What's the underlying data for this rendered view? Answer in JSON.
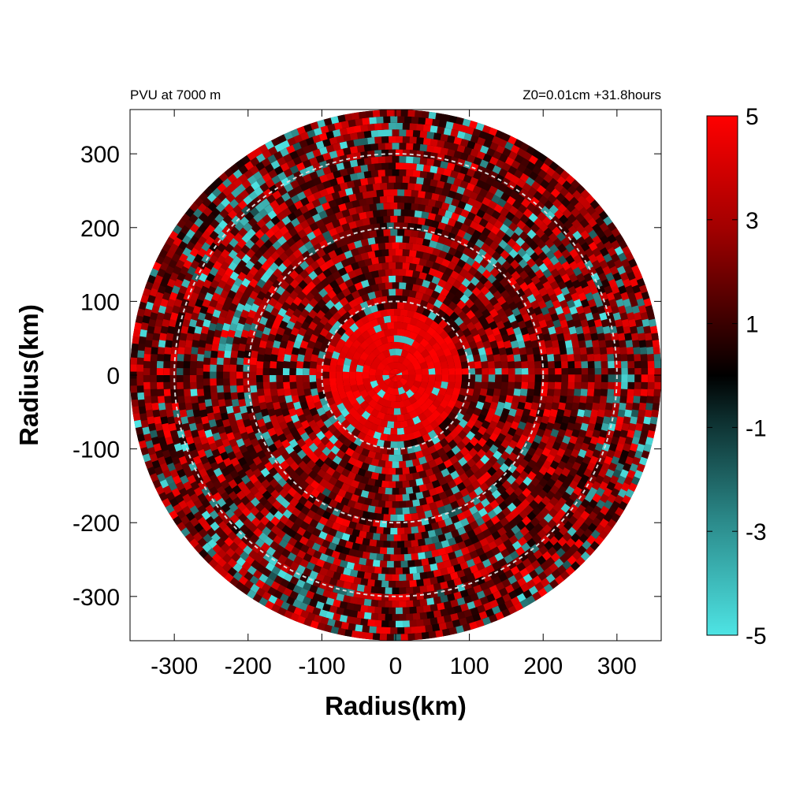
{
  "chart_data": {
    "type": "heatmap",
    "projection": "polar-disk",
    "title_left": "PVU at  7000 m",
    "title_right": "Z0=0.01cm  +31.8hours",
    "xlabel": "Radius(km)",
    "ylabel": "Radius(km)",
    "xlim": [
      -360,
      360
    ],
    "ylim": [
      -360,
      360
    ],
    "xticks": [
      -300,
      -200,
      -100,
      0,
      100,
      200,
      300
    ],
    "yticks": [
      300,
      200,
      100,
      0,
      -100,
      -200,
      -300
    ],
    "xtick_labels": [
      "-300",
      "-200",
      "-100",
      "0",
      "100",
      "200",
      "300"
    ],
    "ytick_labels": [
      "300",
      "200",
      "100",
      "0",
      "-100",
      "-200",
      "-300"
    ],
    "domain_radius_km": 360,
    "reference_circles_km": [
      100,
      200,
      300
    ],
    "reference_circle_style": "dashed-white",
    "colorbar": {
      "range": [
        -5,
        5
      ],
      "ticks": [
        5,
        3,
        1,
        -1,
        -3,
        -5
      ],
      "tick_labels": [
        "5",
        "3",
        "1",
        "-1",
        "-3",
        "-5"
      ],
      "colors": {
        "min": "#4ee4e4",
        "mid": "#000000",
        "max": "#ff0000"
      }
    },
    "field_description_zones": [
      {
        "r_min": 0,
        "r_max": 90,
        "mean": 4.6
      },
      {
        "r_min": 90,
        "r_max": 180,
        "mean": 2.5
      },
      {
        "r_min": 180,
        "r_max": 360,
        "mean": 1.8
      }
    ]
  }
}
